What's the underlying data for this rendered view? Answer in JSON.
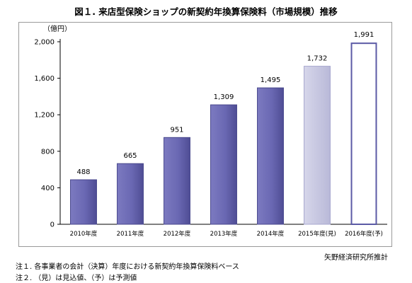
{
  "title": "図１. 来店型保険ショップの新契約年換算保険料（市場規模）推移",
  "source": "矢野経済研究所推計",
  "notes": [
    "注１. 各事業者の会計（決算）年度における新契約年換算保険料ベース",
    "注２. （見）は見込値、（予）は予測値"
  ],
  "chart_data": {
    "type": "bar",
    "ylabel": "（億円）",
    "ylim": [
      0,
      2000
    ],
    "yticks": [
      0,
      400,
      800,
      1200,
      1600,
      2000
    ],
    "ytick_labels": [
      "0",
      "400",
      "800",
      "1,200",
      "1,600",
      "2,000"
    ],
    "grid": false,
    "categories": [
      "2010年度",
      "2011年度",
      "2012年度",
      "2013年度",
      "2014年度",
      "2015年度(見)",
      "2016年度(予)"
    ],
    "values": [
      488,
      665,
      951,
      1309,
      1495,
      1732,
      1991
    ],
    "value_labels": [
      "488",
      "665",
      "951",
      "1,309",
      "1,495",
      "1,732",
      "1,991"
    ],
    "bar_styles": [
      "actual",
      "actual",
      "actual",
      "actual",
      "actual",
      "estimate",
      "forecast"
    ],
    "colors": {
      "actual": "#6a68b3",
      "actual_dark": "#4b4a8e",
      "estimate": "#c6c6e0",
      "forecast_fill": "#ffffff",
      "forecast_stroke": "#5b5aa5"
    }
  }
}
